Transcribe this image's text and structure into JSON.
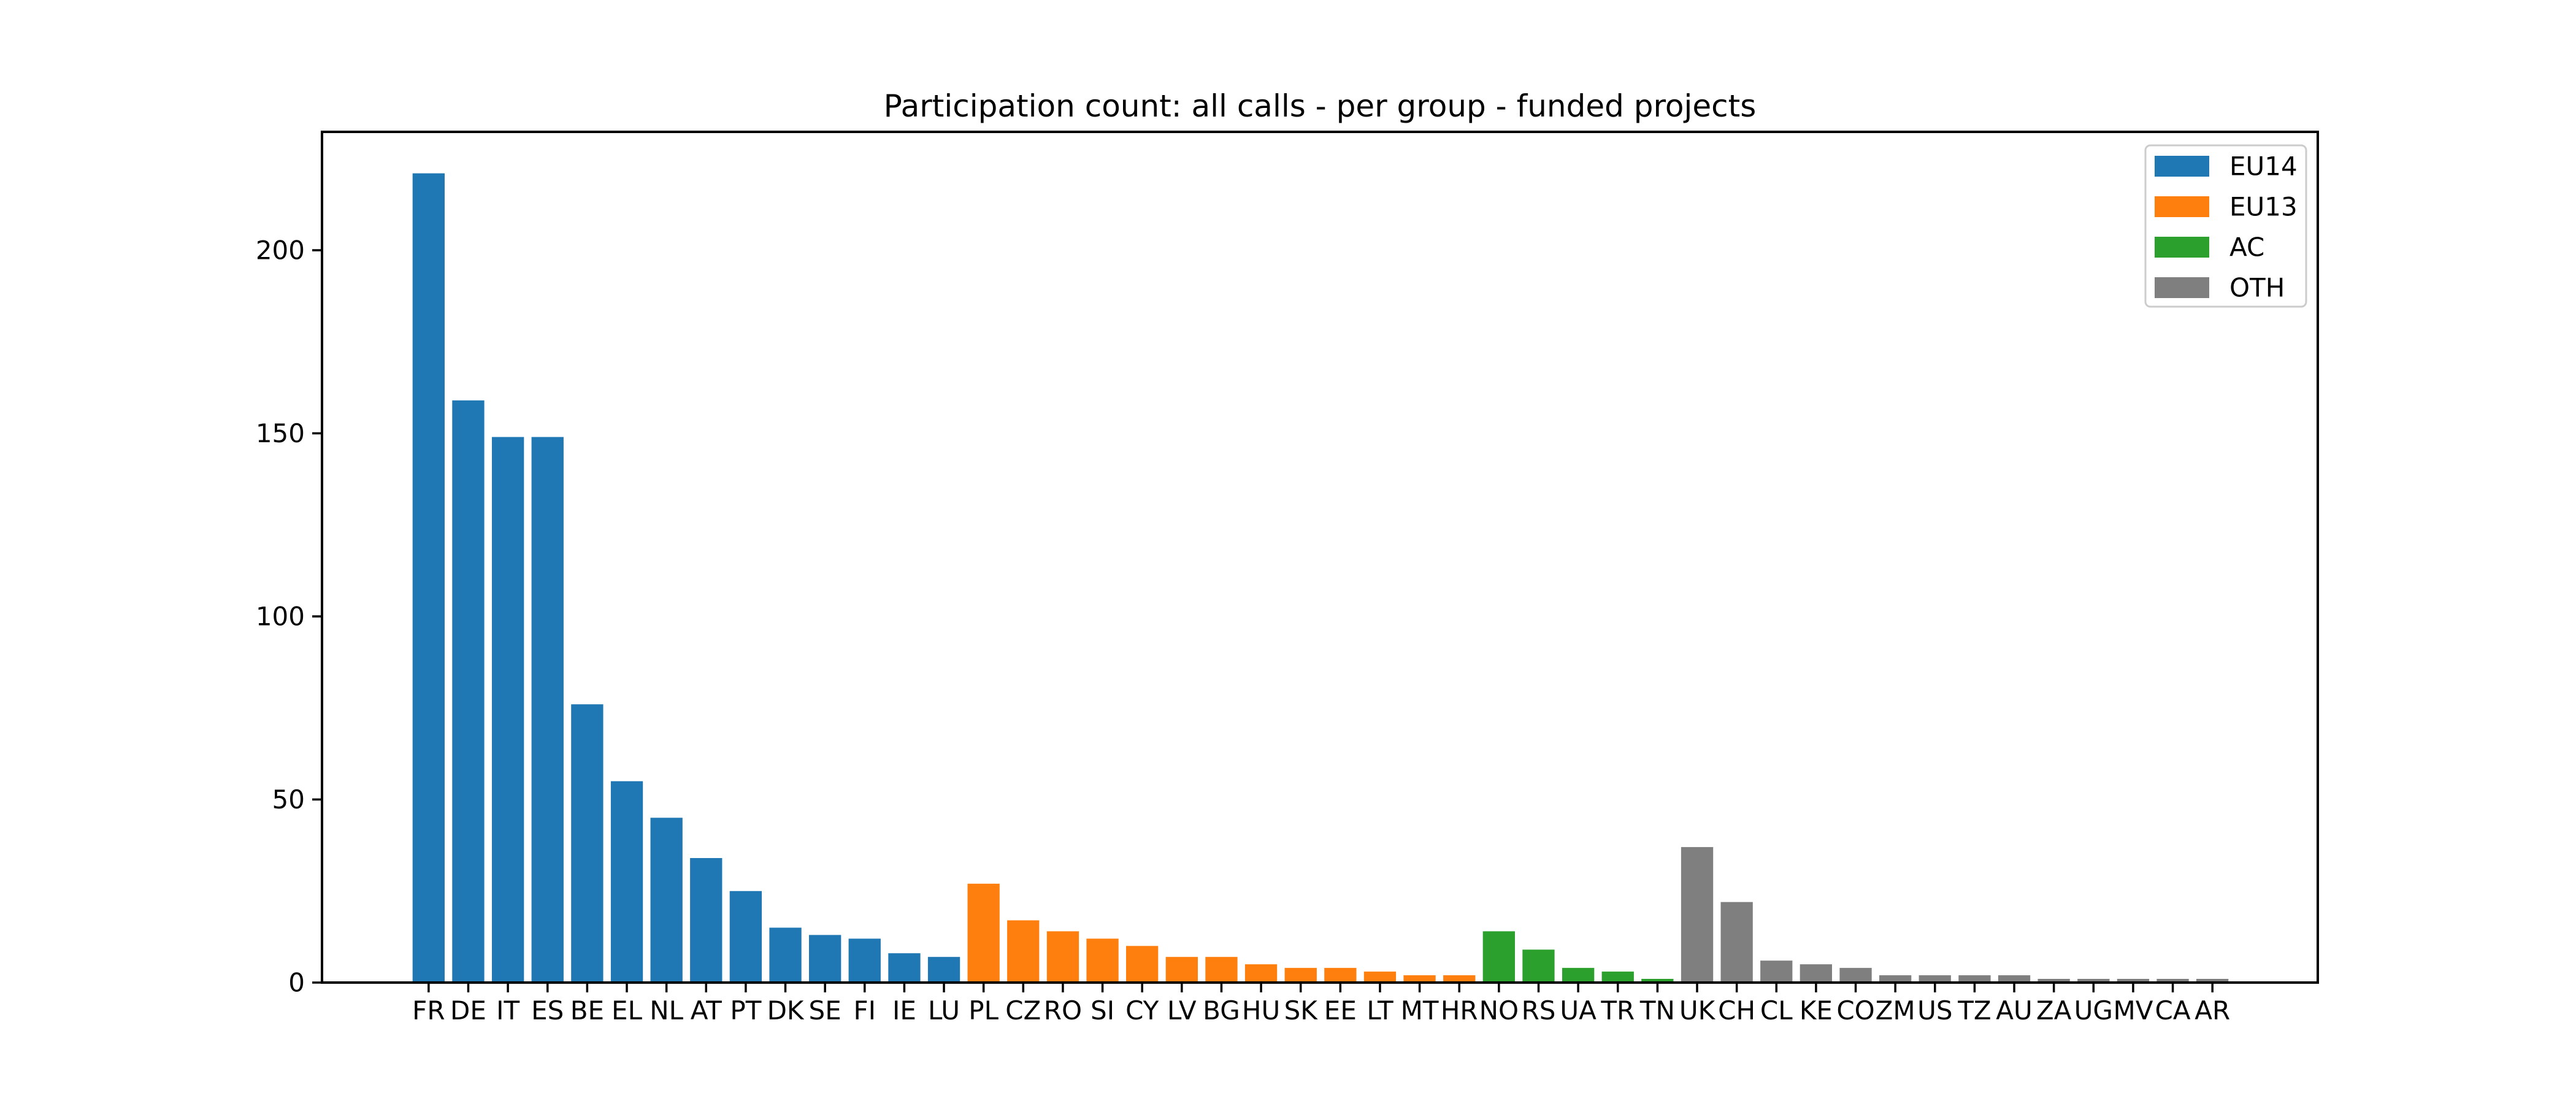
{
  "figure": {
    "background": "#ffffff"
  },
  "chart_data": {
    "type": "bar",
    "title": "Participation count: all calls - per group - funded projects",
    "xlabel": "",
    "ylabel": "",
    "grid": false,
    "legend_position": "upper right",
    "axis_color": "#000000",
    "ylim": [
      0,
      232
    ],
    "yticks": [
      0,
      50,
      100,
      150,
      200
    ],
    "categories": [
      "FR",
      "DE",
      "IT",
      "ES",
      "BE",
      "EL",
      "NL",
      "AT",
      "PT",
      "DK",
      "SE",
      "FI",
      "IE",
      "LU",
      "PL",
      "CZ",
      "RO",
      "SI",
      "CY",
      "LV",
      "BG",
      "HU",
      "SK",
      "EE",
      "LT",
      "MT",
      "HR",
      "NO",
      "RS",
      "UA",
      "TR",
      "TN",
      "UK",
      "CH",
      "CL",
      "KE",
      "CO",
      "ZM",
      "US",
      "TZ",
      "AU",
      "ZA",
      "UG",
      "MV",
      "CA",
      "AR"
    ],
    "values": [
      221,
      159,
      149,
      149,
      76,
      55,
      45,
      34,
      25,
      15,
      13,
      12,
      8,
      7,
      27,
      17,
      14,
      12,
      10,
      7,
      7,
      5,
      4,
      4,
      3,
      2,
      2,
      14,
      9,
      4,
      3,
      1,
      37,
      22,
      6,
      5,
      4,
      2,
      2,
      2,
      2,
      1,
      1,
      1,
      1,
      1
    ],
    "bar_groups": [
      "EU14",
      "EU14",
      "EU14",
      "EU14",
      "EU14",
      "EU14",
      "EU14",
      "EU14",
      "EU14",
      "EU14",
      "EU14",
      "EU14",
      "EU14",
      "EU14",
      "EU13",
      "EU13",
      "EU13",
      "EU13",
      "EU13",
      "EU13",
      "EU13",
      "EU13",
      "EU13",
      "EU13",
      "EU13",
      "EU13",
      "EU13",
      "AC",
      "AC",
      "AC",
      "AC",
      "AC",
      "OTH",
      "OTH",
      "OTH",
      "OTH",
      "OTH",
      "OTH",
      "OTH",
      "OTH",
      "OTH",
      "OTH",
      "OTH",
      "OTH",
      "OTH",
      "OTH"
    ],
    "legend": [
      {
        "label": "EU14",
        "color": "#1f77b4"
      },
      {
        "label": "EU13",
        "color": "#ff7f0e"
      },
      {
        "label": "AC",
        "color": "#2ca02c"
      },
      {
        "label": "OTH",
        "color": "#7f7f7f"
      }
    ]
  }
}
